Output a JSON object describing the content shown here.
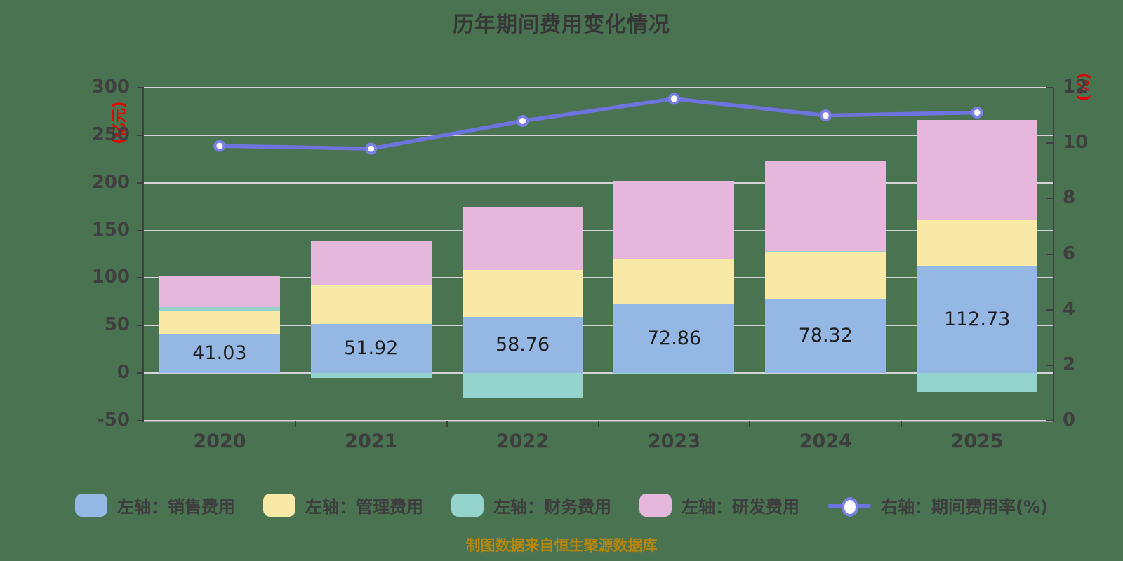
{
  "title": "历年期间费用变化情况",
  "caption": "制图数据来自恒生聚源数据库",
  "left_axis": {
    "unit": "(亿元)",
    "min": -50,
    "max": 300,
    "ticks": [
      300,
      250,
      200,
      150,
      100,
      50,
      0,
      -50
    ]
  },
  "right_axis": {
    "unit": "(%)",
    "min": 0,
    "max": 12,
    "ticks": [
      12,
      10,
      8,
      6,
      4,
      2,
      0
    ]
  },
  "colors": {
    "background": "#4a7351",
    "sales": "#94b7e4",
    "admin": "#f8e9a6",
    "finance": "#95d4cc",
    "rd": "#e5b7dc",
    "line": "#6e74df",
    "marker_ring": "#7a7fe8",
    "marker_fill": "#ffffff",
    "grid": "#d5d5d5",
    "axis_dark": "#3f3f3f",
    "axis_unit_red": "#e60000",
    "caption_gold": "#b8860b"
  },
  "chart_data": {
    "type": "bar",
    "subtype": "stacked-bars-with-line",
    "title": "历年期间费用变化情况",
    "categories": [
      "2020",
      "2021",
      "2022",
      "2023",
      "2024",
      "2025"
    ],
    "left_ylim": [
      -50,
      300
    ],
    "right_ylim": [
      0,
      12
    ],
    "grid": true,
    "legend_position": "bottom",
    "series": [
      {
        "key": "sales",
        "name": "左轴：销售费用",
        "axis": "left",
        "type": "bar",
        "labeled": true,
        "values": [
          41.03,
          51.92,
          58.76,
          72.86,
          78.32,
          112.73
        ]
      },
      {
        "key": "admin",
        "name": "左轴：管理费用",
        "axis": "left",
        "type": "bar",
        "labeled": false,
        "values": [
          24.4,
          41.2,
          49.8,
          47.5,
          49.3,
          47.9
        ]
      },
      {
        "key": "finance",
        "name": "左轴：财务费用",
        "axis": "left",
        "type": "bar",
        "labeled": false,
        "values": [
          4.0,
          -5.0,
          -26.7,
          -1.5,
          1.0,
          -20.1
        ]
      },
      {
        "key": "rd",
        "name": "左轴：研发费用",
        "axis": "left",
        "type": "bar",
        "labeled": false,
        "values": [
          32.6,
          45.6,
          66.2,
          82.0,
          94.0,
          105.4
        ]
      },
      {
        "key": "expense-ratio",
        "name": "右轴：期间费用率(%)",
        "axis": "right",
        "type": "line",
        "values": [
          9.9,
          9.8,
          10.8,
          11.6,
          11.0,
          11.1
        ]
      }
    ]
  }
}
